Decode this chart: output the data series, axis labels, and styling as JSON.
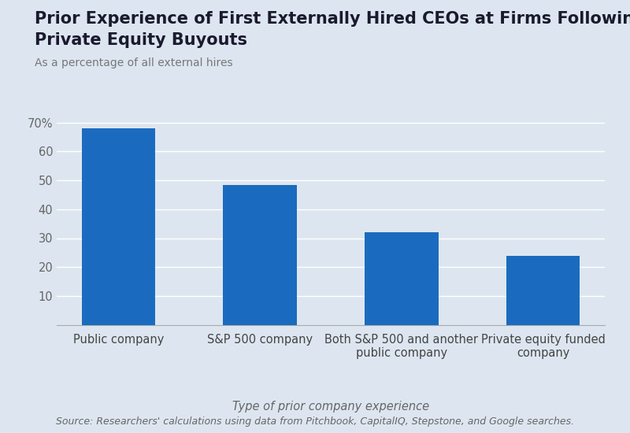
{
  "title_line1": "Prior Experience of First Externally Hired CEOs at Firms Following",
  "title_line2": "Private Equity Buyouts",
  "subtitle": "As a percentage of all external hires",
  "categories": [
    "Public company",
    "S&P 500 company",
    "Both S&P 500 and another\npublic company",
    "Private equity funded\ncompany"
  ],
  "values": [
    68,
    48.5,
    32,
    24
  ],
  "bar_color": "#1a6bbf",
  "background_color": "#dde6f0",
  "plot_bg_color": "#dde6f0",
  "xlabel": "Type of prior company experience",
  "ylim": [
    0,
    75
  ],
  "yticks": [
    10,
    20,
    30,
    40,
    50,
    60,
    70
  ],
  "source_text": "Source: Researchers' calculations using data from Pitchbook, CapitalIQ, Stepstone, and Google searches.",
  "title_fontsize": 15,
  "subtitle_fontsize": 10,
  "xlabel_fontsize": 10.5,
  "tick_fontsize": 10.5,
  "source_fontsize": 9
}
